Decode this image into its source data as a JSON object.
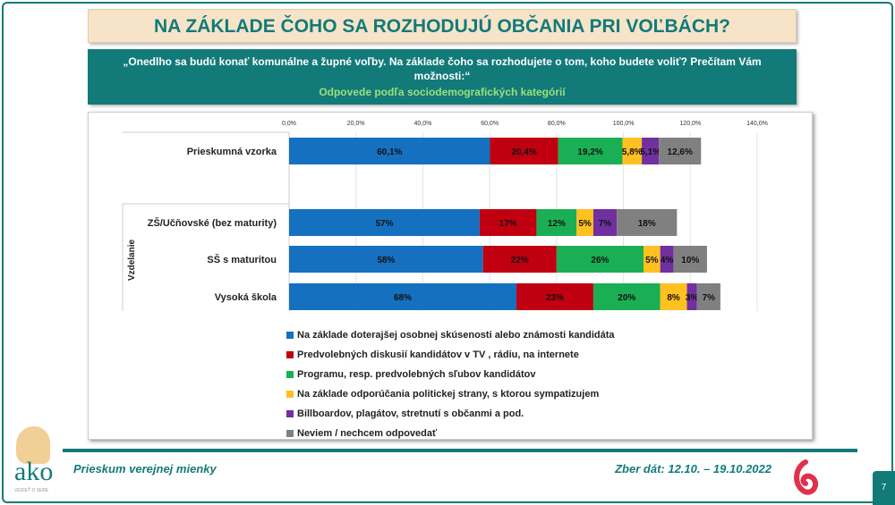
{
  "title": "NA ZÁKLADE ČOHO SA ROZHODUJÚ OBČANIA PRI VOĽBÁCH?",
  "question": "„Onedlho sa budú konať komunálne a župné voľby. Na základe čoho sa rozhodujete o tom, koho budete voliť? Prečítam Vám možnosti:“",
  "subtitle": "Odpovede podľa sociodemografických kategórií",
  "footer": {
    "left": "Prieskum verejnej mienky",
    "right": "Zber dát: 12.10. – 19.10.2022",
    "page": "7",
    "logo_text": "ako",
    "logo_tagline": "VEDIEŤ O SEBE"
  },
  "chart_data": {
    "type": "bar",
    "orientation": "horizontal",
    "stacked": true,
    "xlim": [
      0,
      140
    ],
    "xticks": [
      "0,0%",
      "20,0%",
      "40,0%",
      "60,0%",
      "80,0%",
      "100,0%",
      "120,0%",
      "140,0%"
    ],
    "group_label": "Vzdelanie",
    "grid": true,
    "legend_position": "bottom",
    "categories": [
      "Prieskumná vzorka",
      "ZŠ/Učňovské (bez maturity)",
      "SŠ s maturitou",
      "Vysoká škola"
    ],
    "data_labels": [
      [
        "60,1%",
        "20,4%",
        "19,2%",
        "5,8%",
        "5,1%",
        "12,6%"
      ],
      [
        "57%",
        "17%",
        "12%",
        "5%",
        "7%",
        "18%"
      ],
      [
        "58%",
        "22%",
        "26%",
        "5%",
        "4%",
        "10%"
      ],
      [
        "68%",
        "23%",
        "20%",
        "8%",
        "3%",
        "7%"
      ]
    ],
    "series": [
      {
        "name": "Na základe doterajšej osobnej skúsenosti alebo známosti kandidáta",
        "color": "#1670c0",
        "values": [
          60.1,
          57,
          58,
          68
        ]
      },
      {
        "name": "Predvolebných diskusií kandidátov v TV , rádiu, na internete",
        "color": "#c00010",
        "values": [
          20.4,
          17,
          22,
          23
        ]
      },
      {
        "name": "Programu, resp. predvolebných sľubov kandidátov",
        "color": "#1aaf54",
        "values": [
          19.2,
          12,
          26,
          20
        ]
      },
      {
        "name": "Na základe odporúčania politickej strany, s ktorou sympatizujem",
        "color": "#ffc020",
        "values": [
          5.8,
          5,
          5,
          8
        ]
      },
      {
        "name": "Billboardov, plagátov, stretnutí s občanmi a pod.",
        "color": "#7030a0",
        "values": [
          5.1,
          7,
          4,
          3
        ]
      },
      {
        "name": "Neviem / nechcem odpovedať",
        "color": "#808080",
        "values": [
          12.6,
          18,
          10,
          7
        ]
      }
    ]
  }
}
